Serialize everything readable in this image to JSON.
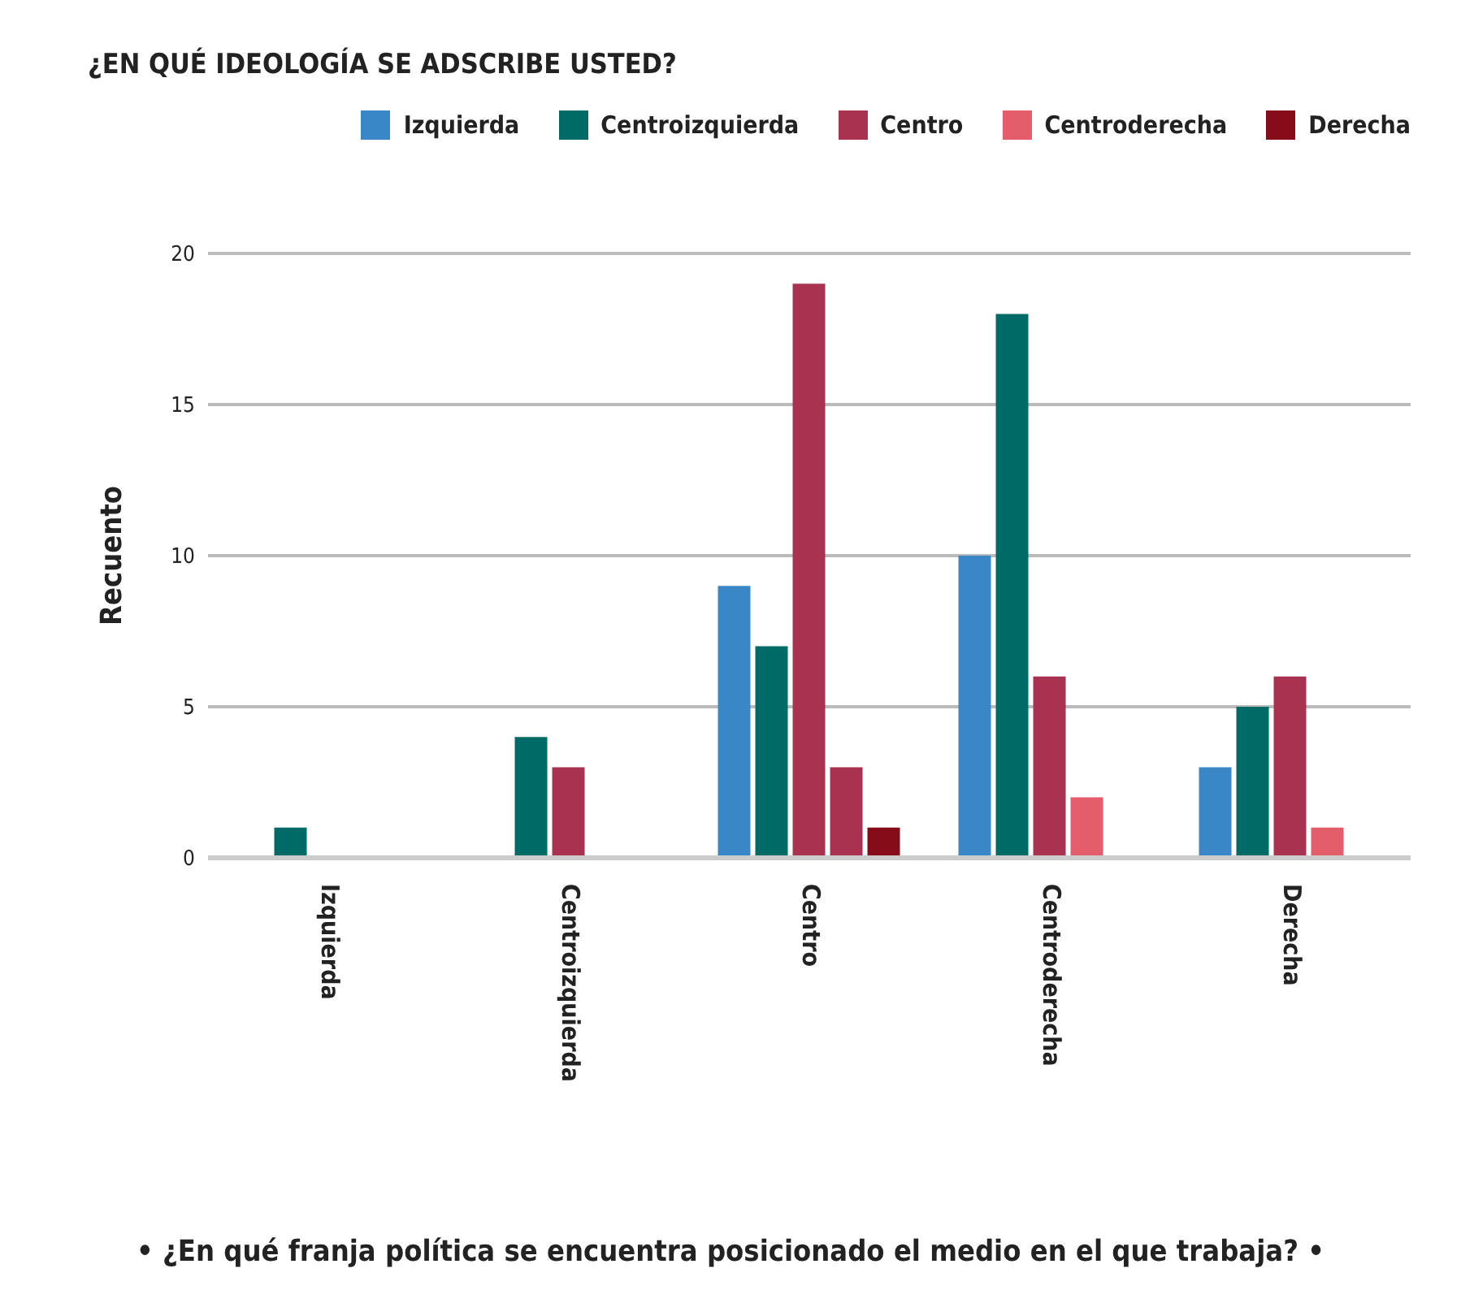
{
  "chart_data": {
    "type": "bar",
    "title": "¿EN QUÉ IDEOLOGÍA SE ADSCRIBE USTED?",
    "ylabel": "Recuento",
    "categories": [
      "Izquierda",
      "Centroizquierda",
      "Centro",
      "Centroderecha",
      "Derecha"
    ],
    "series": [
      {
        "name": "Izquierda",
        "color": "#3a87c8",
        "values": [
          null,
          null,
          9,
          10,
          3
        ]
      },
      {
        "name": "Centroizquierda",
        "color": "#006a66",
        "values": [
          1,
          4,
          7,
          18,
          5
        ]
      },
      {
        "name": "Centro",
        "color": "#a83250",
        "values": [
          null,
          3,
          19,
          6,
          6
        ]
      },
      {
        "name": "Centroderecha",
        "color": "#e35d6a",
        "colors": [
          "#e35d6a",
          "#e35d6a",
          "#a83250",
          "#e35d6a",
          "#e35d6a"
        ],
        "values": [
          null,
          null,
          3,
          2,
          1
        ]
      },
      {
        "name": "Derecha",
        "color": "#850c18",
        "values": [
          null,
          null,
          1,
          null,
          null
        ]
      }
    ],
    "ylim": [
      0,
      20
    ],
    "yticks": [
      0,
      5,
      10,
      15,
      20
    ],
    "grid": "y",
    "legend": "top right",
    "annotations": [
      "• ¿En qué franja política se encuentra posicionado el medio en el que trabaja? •"
    ]
  }
}
